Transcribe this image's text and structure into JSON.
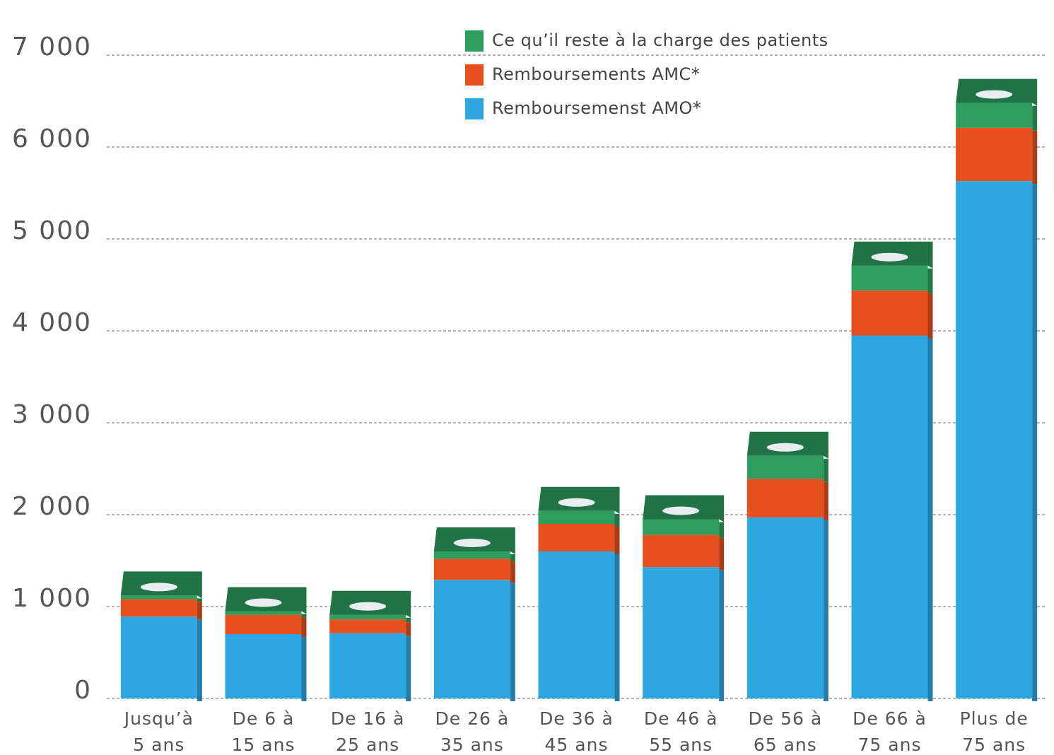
{
  "chart_data": {
    "type": "stacked-bar",
    "categories": [
      [
        "Jusqu’à",
        "5 ans"
      ],
      [
        "De 6 à",
        "15 ans"
      ],
      [
        "De 16 à",
        "25 ans"
      ],
      [
        "De 26 à",
        "35 ans"
      ],
      [
        "De 36 à",
        "45 ans"
      ],
      [
        "De 46 à",
        "55 ans"
      ],
      [
        "De 56 à",
        "65 ans"
      ],
      [
        "De 66 à",
        "75 ans"
      ],
      [
        "Plus de",
        "75 ans"
      ]
    ],
    "series": [
      {
        "name": "Remboursemenst AMO*",
        "color": "#2ea7e0",
        "values": [
          890,
          700,
          710,
          1290,
          1600,
          1430,
          1970,
          3950,
          5630
        ]
      },
      {
        "name": "Remboursements AMC*",
        "color": "#e5501e",
        "values": [
          190,
          210,
          150,
          230,
          300,
          350,
          420,
          490,
          580
        ]
      },
      {
        "name": "Ce qu’il reste à la charge des patients",
        "color": "#2e9e5f",
        "values": [
          40,
          40,
          50,
          80,
          140,
          170,
          250,
          270,
          270
        ]
      }
    ],
    "ylim": [
      0,
      7600
    ],
    "yticks": [
      0,
      {
        "value": 1000,
        "label": "1 000"
      },
      {
        "value": 2000,
        "label": "2 000"
      },
      {
        "value": 3000,
        "label": "3 000"
      },
      {
        "value": 4000,
        "label": "4 000"
      },
      {
        "value": 5000,
        "label": "5 000"
      },
      {
        "value": 6000,
        "label": "6 000"
      },
      {
        "value": 7000,
        "label": "7 000"
      }
    ],
    "grid": true,
    "legend": "top"
  }
}
